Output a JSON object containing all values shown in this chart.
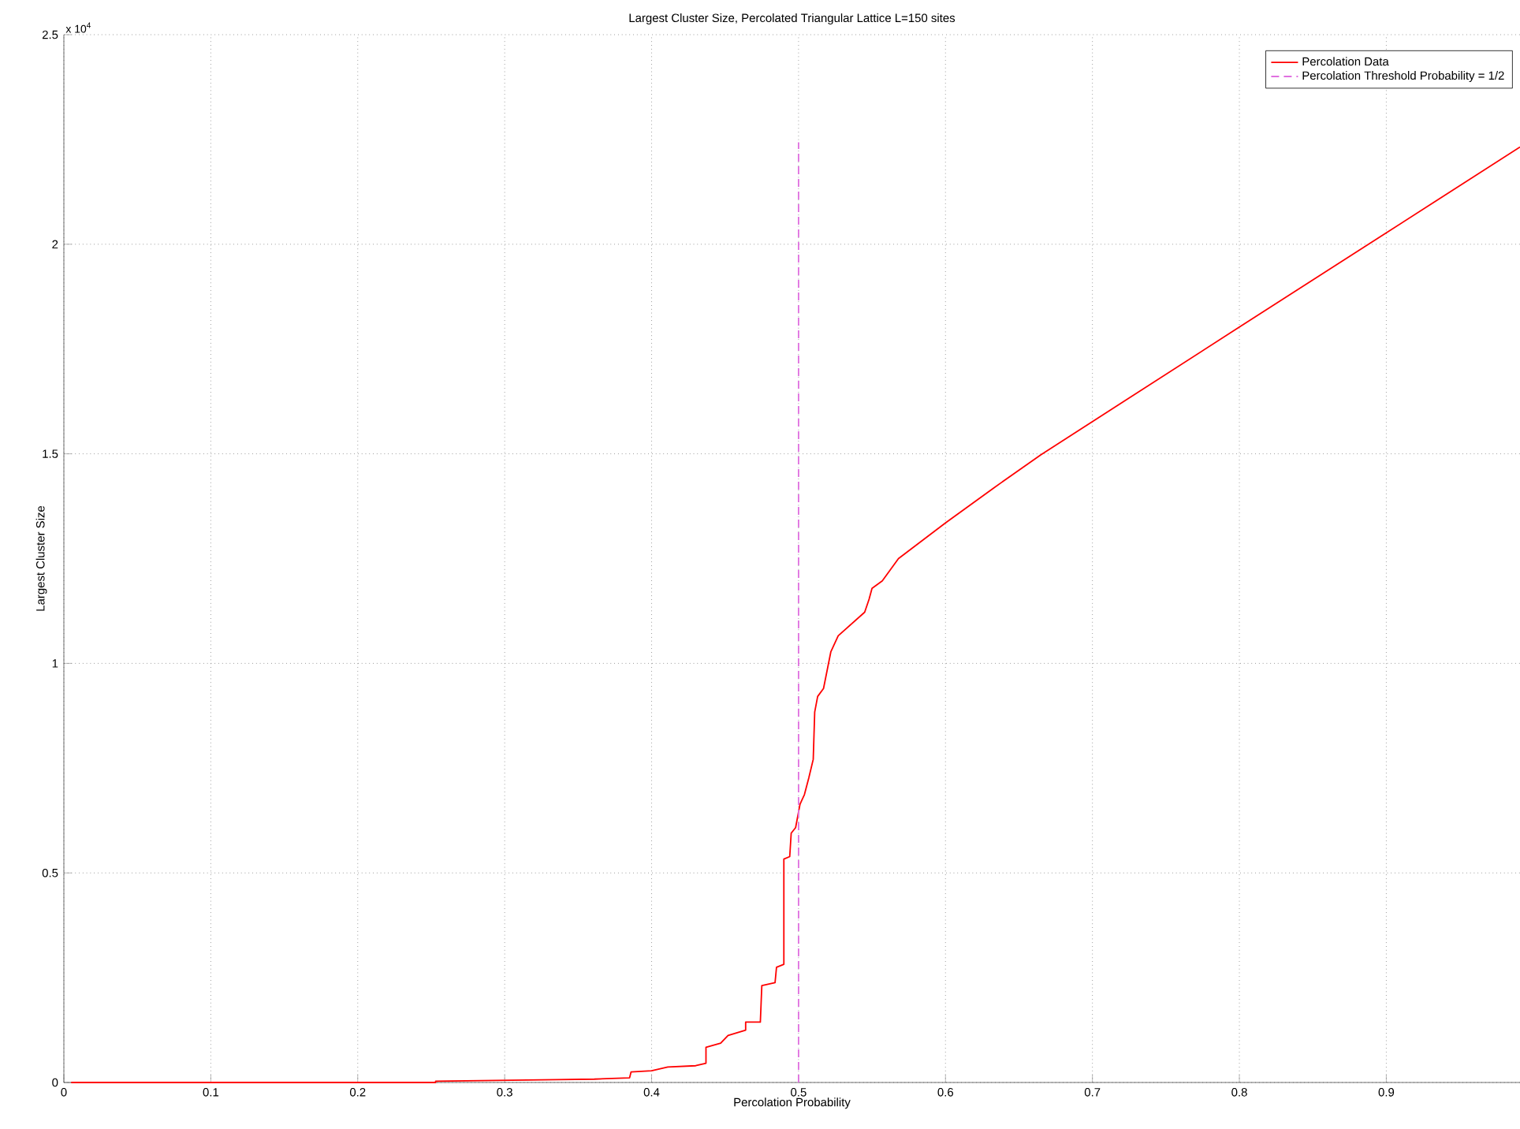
{
  "chart_data": {
    "type": "line",
    "title": "Largest Cluster Size, Percolated Triangular Lattice L=150 sites",
    "xlabel": "Percolation Probability",
    "ylabel": "Largest Cluster Size",
    "annotations": [
      "x 10$^{4}$"
    ],
    "xlim": [
      0,
      0.991
    ],
    "ylim": [
      0,
      2.5
    ],
    "xticks": [
      0,
      0.1,
      0.2,
      0.3,
      0.4,
      0.5,
      0.6,
      0.7,
      0.8,
      0.9
    ],
    "yticks": [
      0,
      0.5,
      1,
      1.5,
      2,
      2.5
    ],
    "grid": true,
    "legend": "top right",
    "series": [
      {
        "name": "Percolation Data",
        "color": "#ff0000",
        "line_style": "solid",
        "x": [
          0.005,
          0.253,
          0.253,
          0.336,
          0.361,
          0.385,
          0.386,
          0.4,
          0.411,
          0.43,
          0.437,
          0.437,
          0.447,
          0.452,
          0.464,
          0.464,
          0.474,
          0.475,
          0.484,
          0.485,
          0.49,
          0.49,
          0.494,
          0.495,
          0.498,
          0.501,
          0.504,
          0.507,
          0.51,
          0.511,
          0.513,
          0.517,
          0.522,
          0.527,
          0.545,
          0.548,
          0.55,
          0.557,
          0.568,
          0.6,
          0.633,
          0.665,
          0.799,
          0.899,
          0.991
        ],
        "values": [
          0,
          0,
          0.003,
          0.007,
          0.008,
          0.011,
          0.025,
          0.028,
          0.037,
          0.04,
          0.046,
          0.084,
          0.094,
          0.112,
          0.125,
          0.144,
          0.144,
          0.231,
          0.238,
          0.275,
          0.282,
          0.533,
          0.539,
          0.595,
          0.608,
          0.664,
          0.687,
          0.727,
          0.771,
          0.884,
          0.921,
          0.94,
          1.028,
          1.066,
          1.122,
          1.153,
          1.179,
          1.197,
          1.25,
          1.335,
          1.419,
          1.498,
          1.8,
          2.025,
          2.232
        ]
      },
      {
        "name": "Percolation Threshold Probability = 1/2",
        "color": "#e070e0",
        "line_style": "dashed",
        "x": [
          0.5,
          0.5
        ],
        "values": [
          0,
          2.243
        ]
      }
    ]
  }
}
